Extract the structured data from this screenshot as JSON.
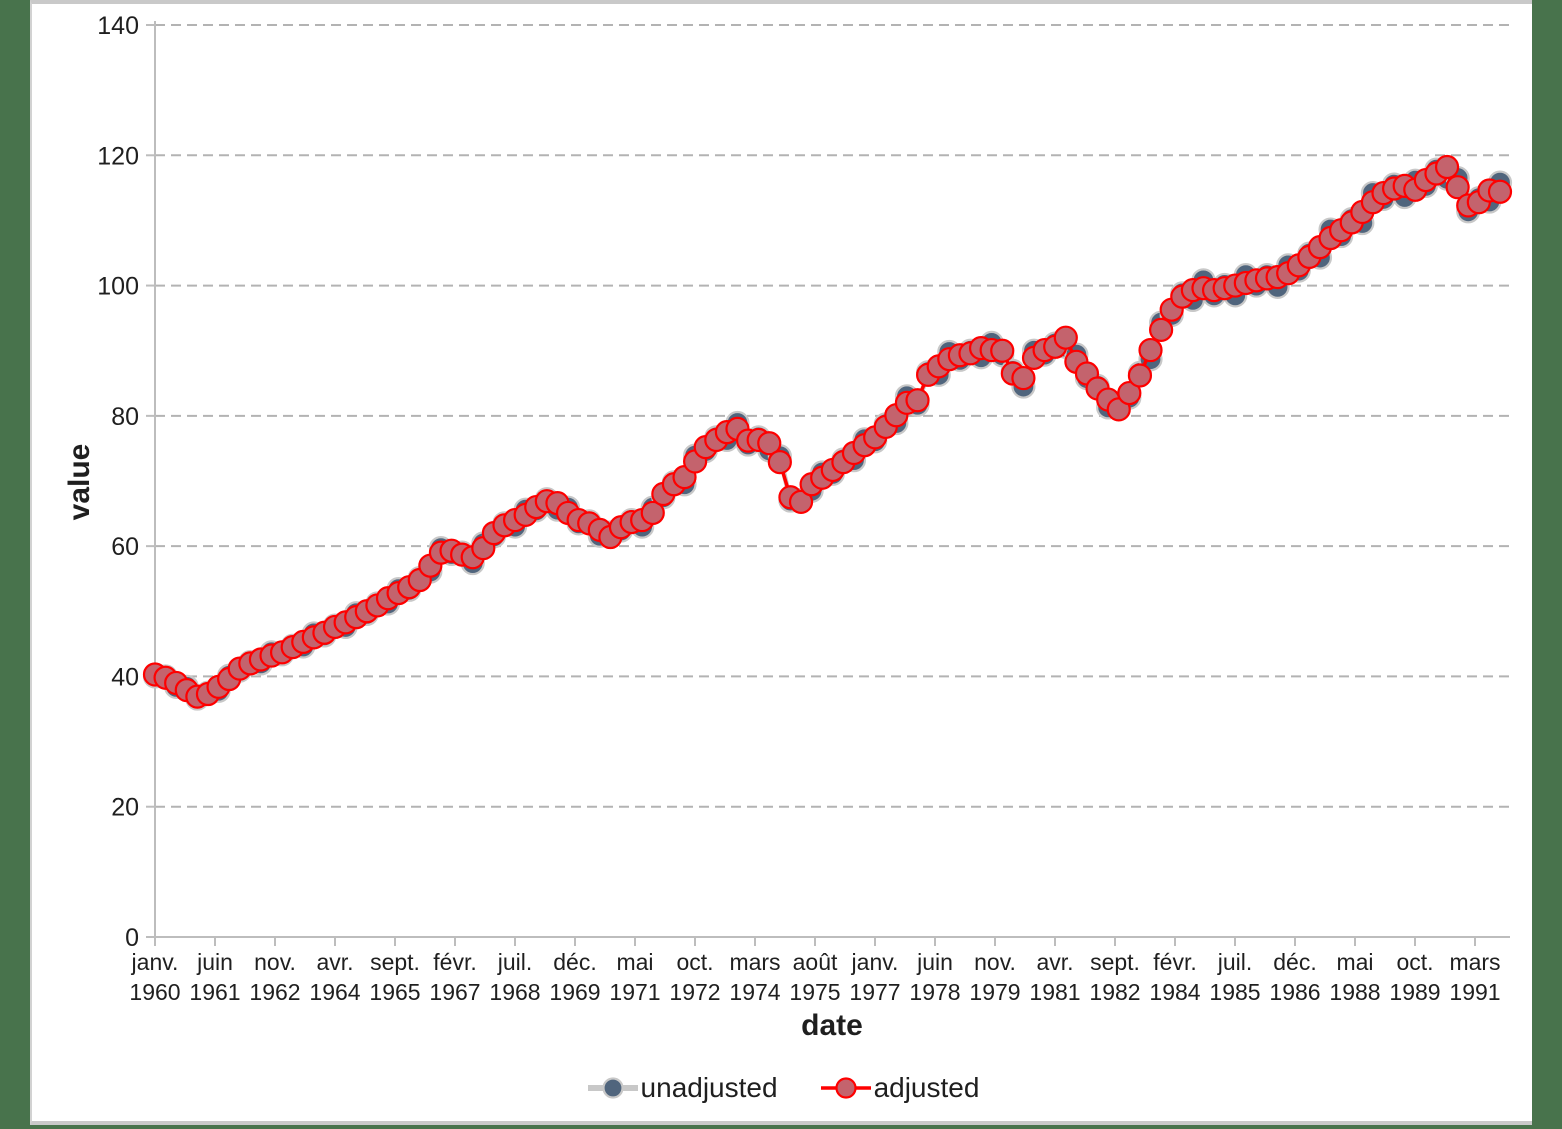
{
  "page": {
    "background_color": "#48734c",
    "sheet_color": "#ffffff",
    "border_color": "#c9c9c9"
  },
  "chart_data": {
    "type": "line",
    "title": "",
    "xlabel": "date",
    "ylabel": "value",
    "grid": "horizontal-dashed",
    "grid_color": "#b3b3b3",
    "axis_color": "#bdbdbd",
    "text_color": "#1f1f1f",
    "legend_position": "bottom-center",
    "ylim": [
      0,
      140
    ],
    "y_ticks": [
      0,
      20,
      40,
      60,
      80,
      100,
      120,
      140
    ],
    "x_tick_interval_months": 17,
    "x_tick_labels": [
      {
        "month": "janv.",
        "year": "1960"
      },
      {
        "month": "juin",
        "year": "1961"
      },
      {
        "month": "nov.",
        "year": "1962"
      },
      {
        "month": "avr.",
        "year": "1964"
      },
      {
        "month": "sept.",
        "year": "1965"
      },
      {
        "month": "févr.",
        "year": "1967"
      },
      {
        "month": "juil.",
        "year": "1968"
      },
      {
        "month": "déc.",
        "year": "1969"
      },
      {
        "month": "mai",
        "year": "1971"
      },
      {
        "month": "oct.",
        "year": "1972"
      },
      {
        "month": "mars",
        "year": "1974"
      },
      {
        "month": "août",
        "year": "1975"
      },
      {
        "month": "janv.",
        "year": "1977"
      },
      {
        "month": "juin",
        "year": "1978"
      },
      {
        "month": "nov.",
        "year": "1979"
      },
      {
        "month": "avr.",
        "year": "1981"
      },
      {
        "month": "sept.",
        "year": "1982"
      },
      {
        "month": "févr.",
        "year": "1984"
      },
      {
        "month": "juil.",
        "year": "1985"
      },
      {
        "month": "déc.",
        "year": "1986"
      },
      {
        "month": "mai",
        "year": "1988"
      },
      {
        "month": "oct.",
        "year": "1989"
      },
      {
        "month": "mars",
        "year": "1991"
      }
    ],
    "x": [
      "1960Q1",
      "1960Q2",
      "1960Q3",
      "1960Q4",
      "1961Q1",
      "1961Q2",
      "1961Q3",
      "1961Q4",
      "1962Q1",
      "1962Q2",
      "1962Q3",
      "1962Q4",
      "1963Q1",
      "1963Q2",
      "1963Q3",
      "1963Q4",
      "1964Q1",
      "1964Q2",
      "1964Q3",
      "1964Q4",
      "1965Q1",
      "1965Q2",
      "1965Q3",
      "1965Q4",
      "1966Q1",
      "1966Q2",
      "1966Q3",
      "1966Q4",
      "1967Q1",
      "1967Q2",
      "1967Q3",
      "1967Q4",
      "1968Q1",
      "1968Q2",
      "1968Q3",
      "1968Q4",
      "1969Q1",
      "1969Q2",
      "1969Q3",
      "1969Q4",
      "1970Q1",
      "1970Q2",
      "1970Q3",
      "1970Q4",
      "1971Q1",
      "1971Q2",
      "1971Q3",
      "1971Q4",
      "1972Q1",
      "1972Q2",
      "1972Q3",
      "1972Q4",
      "1973Q1",
      "1973Q2",
      "1973Q3",
      "1973Q4",
      "1974Q1",
      "1974Q2",
      "1974Q3",
      "1974Q4",
      "1975Q1",
      "1975Q2",
      "1975Q3",
      "1975Q4",
      "1976Q1",
      "1976Q2",
      "1976Q3",
      "1976Q4",
      "1977Q1",
      "1977Q2",
      "1977Q3",
      "1977Q4",
      "1978Q1",
      "1978Q2",
      "1978Q3",
      "1978Q4",
      "1979Q1",
      "1979Q2",
      "1979Q3",
      "1979Q4",
      "1980Q1",
      "1980Q2",
      "1980Q3",
      "1980Q4",
      "1981Q1",
      "1981Q2",
      "1981Q3",
      "1981Q4",
      "1982Q1",
      "1982Q2",
      "1982Q3",
      "1982Q4",
      "1983Q1",
      "1983Q2",
      "1983Q3",
      "1983Q4",
      "1984Q1",
      "1984Q2",
      "1984Q3",
      "1984Q4",
      "1985Q1",
      "1985Q2",
      "1985Q3",
      "1985Q4",
      "1986Q1",
      "1986Q2",
      "1986Q3",
      "1986Q4",
      "1987Q1",
      "1987Q2",
      "1987Q3",
      "1987Q4",
      "1988Q1",
      "1988Q2",
      "1988Q3",
      "1988Q4",
      "1989Q1",
      "1989Q2",
      "1989Q3",
      "1989Q4",
      "1990Q1",
      "1990Q2",
      "1990Q3",
      "1990Q4",
      "1991Q1",
      "1991Q2",
      "1991Q3",
      "1991Q4"
    ],
    "series": [
      {
        "name": "unadjusted",
        "line_color": "#c8c8c8",
        "line_width": 5,
        "marker_fill": "#50657d",
        "marker_stroke": "#c8c8c8",
        "values": [
          40.0,
          40.0,
          38.4,
          38.4,
          36.6,
          37.5,
          37.8,
          40.1,
          40.9,
          42.2,
          42.0,
          43.7,
          43.4,
          44.7,
          44.6,
          46.6,
          46.3,
          47.8,
          47.6,
          49.7,
          49.6,
          51.2,
          51.2,
          53.4,
          53.3,
          55.1,
          56.1,
          59.7,
          58.8,
          59.0,
          57.4,
          60.4,
          61.5,
          63.5,
          63.0,
          65.6,
          65.5,
          67.2,
          65.6,
          65.9,
          63.5,
          63.8,
          61.6,
          62.1,
          62.4,
          64.0,
          63.0,
          65.9,
          67.5,
          69.8,
          69.5,
          73.9,
          74.6,
          76.7,
          76.3,
          78.9,
          75.6,
          76.7,
          74.7,
          73.8,
          67.0,
          67.1,
          68.5,
          71.3,
          71.1,
          73.3,
          73.2,
          76.4,
          76.1,
          78.7,
          78.9,
          83.0,
          81.7,
          86.7,
          86.3,
          89.8,
          88.6,
          90.0,
          89.0,
          91.2,
          89.3,
          86.9,
          84.5,
          90.0,
          89.4,
          91.1,
          90.6,
          89.4,
          85.8,
          84.6,
          81.3,
          82.0,
          82.8,
          86.6,
          88.7,
          94.3,
          95.5,
          98.8,
          97.8,
          100.8,
          98.5,
          100.1,
          98.5,
          101.6,
          100.0,
          101.6,
          99.8,
          103.1,
          102.3,
          104.9,
          104.3,
          108.6,
          107.6,
          110.2,
          109.6,
          114.2,
          113.3,
          115.5,
          113.6,
          116.1,
          115.3,
          117.8,
          116.4,
          116.5,
          111.4,
          113.4,
          112.9,
          115.8
        ]
      },
      {
        "name": "adjusted",
        "line_color": "#fe0000",
        "line_width": 3.5,
        "marker_fill": "#c4636d",
        "marker_stroke": "#fe0000",
        "values": [
          40.3,
          39.8,
          39.0,
          37.9,
          36.9,
          37.3,
          38.4,
          39.6,
          41.2,
          42.0,
          42.6,
          43.2,
          43.7,
          44.5,
          45.3,
          46.0,
          46.7,
          47.6,
          48.3,
          49.1,
          50.0,
          50.9,
          52.0,
          52.8,
          53.7,
          54.8,
          57.0,
          59.0,
          59.3,
          58.7,
          58.3,
          59.7,
          62.0,
          63.2,
          64.0,
          64.8,
          66.0,
          66.9,
          66.6,
          65.1,
          64.0,
          63.5,
          62.5,
          61.4,
          62.9,
          63.7,
          64.0,
          65.1,
          68.0,
          69.5,
          70.6,
          73.0,
          75.2,
          76.3,
          77.5,
          78.0,
          76.2,
          76.3,
          75.8,
          72.9,
          67.5,
          66.8,
          69.5,
          70.5,
          71.7,
          72.9,
          74.3,
          75.5,
          76.7,
          78.3,
          80.1,
          82.0,
          82.4,
          86.3,
          87.6,
          88.7,
          89.3,
          89.6,
          90.4,
          90.1,
          90.0,
          86.5,
          85.8,
          88.9,
          90.1,
          90.6,
          92.0,
          88.3,
          86.5,
          84.2,
          82.5,
          81.0,
          83.5,
          86.2,
          90.1,
          93.2,
          96.3,
          98.3,
          99.3,
          99.6,
          99.3,
          99.6,
          100.0,
          100.4,
          100.8,
          101.1,
          101.3,
          101.9,
          103.1,
          104.4,
          105.9,
          107.3,
          108.5,
          109.7,
          111.3,
          112.8,
          114.2,
          114.9,
          115.3,
          114.7,
          116.2,
          117.2,
          118.2,
          115.1,
          112.3,
          112.8,
          114.6,
          114.4
        ]
      }
    ]
  },
  "legend": {
    "items": [
      {
        "label": "unadjusted"
      },
      {
        "label": "adjusted"
      }
    ]
  }
}
